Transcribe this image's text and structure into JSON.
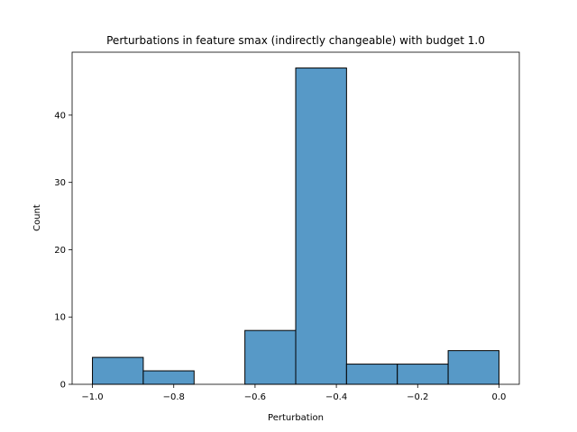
{
  "chart_data": {
    "type": "bar",
    "title": "Perturbations in feature smax (indirectly changeable) with budget 1.0",
    "xlabel": "Perturbation",
    "ylabel": "Count",
    "bins": [
      {
        "x0": -1.0,
        "x1": -0.875,
        "count": 4
      },
      {
        "x0": -0.875,
        "x1": -0.75,
        "count": 2
      },
      {
        "x0": -0.75,
        "x1": -0.625,
        "count": 0
      },
      {
        "x0": -0.625,
        "x1": -0.5,
        "count": 8
      },
      {
        "x0": -0.5,
        "x1": -0.375,
        "count": 47
      },
      {
        "x0": -0.375,
        "x1": -0.25,
        "count": 3
      },
      {
        "x0": -0.25,
        "x1": -0.125,
        "count": 3
      },
      {
        "x0": -0.125,
        "x1": 0.0,
        "count": 5
      }
    ],
    "xlim": [
      -1.05,
      0.05
    ],
    "ylim": [
      0,
      49.35
    ],
    "xticks": [
      -1.0,
      -0.8,
      -0.6,
      -0.4,
      -0.2,
      0.0
    ],
    "xtick_labels": [
      "−1.0",
      "−0.8",
      "−0.6",
      "−0.4",
      "−0.2",
      "0.0"
    ],
    "yticks": [
      0,
      10,
      20,
      30,
      40
    ],
    "ytick_labels": [
      "0",
      "10",
      "20",
      "30",
      "40"
    ],
    "bar_color": "#5799c7",
    "edge_color": "#000000",
    "grid": false,
    "legend": "none"
  }
}
